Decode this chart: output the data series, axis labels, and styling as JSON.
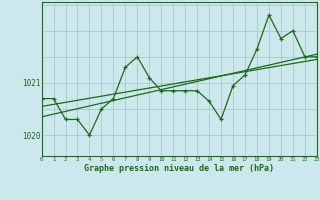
{
  "xlabel": "Graphe pression niveau de la mer (hPa)",
  "background_color": "#cce8ec",
  "grid_color": "#9dc8cc",
  "line_color": "#1a6b1a",
  "xlim": [
    0,
    23
  ],
  "ylim": [
    1019.6,
    1022.55
  ],
  "yticks": [
    1020,
    1021
  ],
  "xticks": [
    0,
    1,
    2,
    3,
    4,
    5,
    6,
    7,
    8,
    9,
    10,
    11,
    12,
    13,
    14,
    15,
    16,
    17,
    18,
    19,
    20,
    21,
    22,
    23
  ],
  "hours": [
    0,
    1,
    2,
    3,
    4,
    5,
    6,
    7,
    8,
    9,
    10,
    11,
    12,
    13,
    14,
    15,
    16,
    17,
    18,
    19,
    20,
    21,
    22,
    23
  ],
  "pressure": [
    1020.7,
    1020.7,
    1020.3,
    1020.3,
    1020.0,
    1020.5,
    1020.7,
    1021.3,
    1021.5,
    1021.1,
    1020.85,
    1020.85,
    1020.85,
    1020.85,
    1020.65,
    1020.3,
    1020.95,
    1021.15,
    1021.65,
    1022.3,
    1021.85,
    1022.0,
    1021.5,
    1021.5
  ],
  "trend1_x": [
    0,
    23
  ],
  "trend1_y": [
    1020.55,
    1021.45
  ],
  "trend2_x": [
    0,
    23
  ],
  "trend2_y": [
    1020.35,
    1021.55
  ]
}
